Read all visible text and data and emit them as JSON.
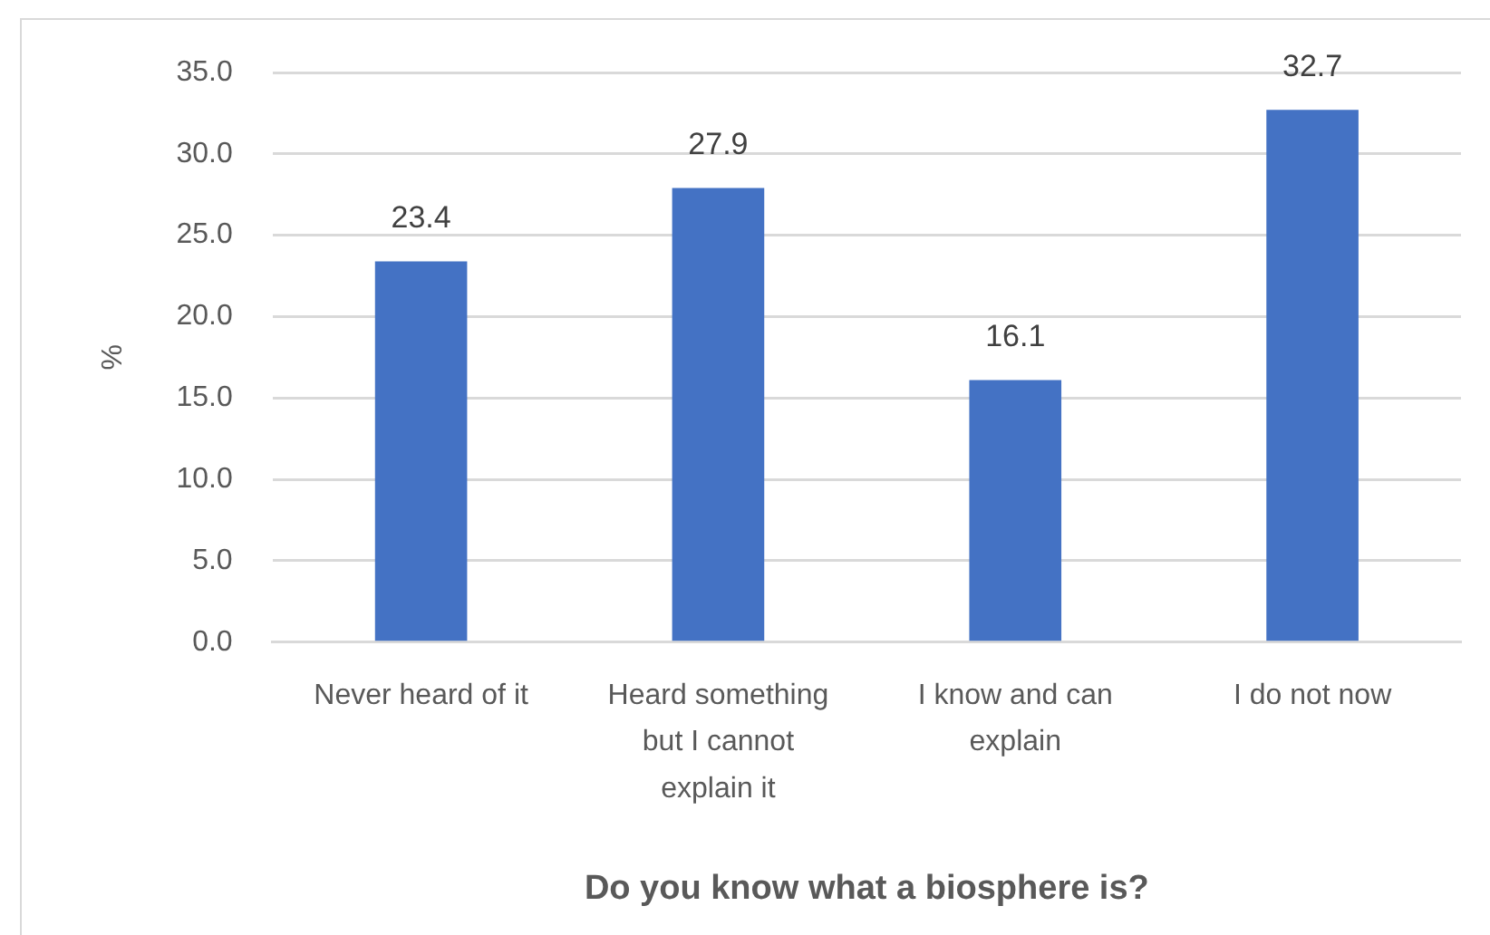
{
  "chart_data": {
    "type": "bar",
    "xlabel": "Do you know what a biosphere is?",
    "ylabel": "%",
    "categories": [
      "Never heard of it",
      "Heard something but I cannot explain it",
      "I know and can explain",
      "I do not now"
    ],
    "values": [
      23.4,
      27.9,
      16.1,
      32.7
    ],
    "color": "#4472c4",
    "ylim": [
      0,
      35
    ],
    "yticks": [
      {
        "value": 0,
        "label": "0.0"
      },
      {
        "value": 5,
        "label": "5.0"
      },
      {
        "value": 10,
        "label": "10.0"
      },
      {
        "value": 15,
        "label": "15.0"
      },
      {
        "value": 20,
        "label": "20.0"
      },
      {
        "value": 25,
        "label": "25.0"
      },
      {
        "value": 30,
        "label": "30.0"
      },
      {
        "value": 35,
        "label": "35.0"
      }
    ],
    "grid": "y",
    "data_labels": true
  }
}
